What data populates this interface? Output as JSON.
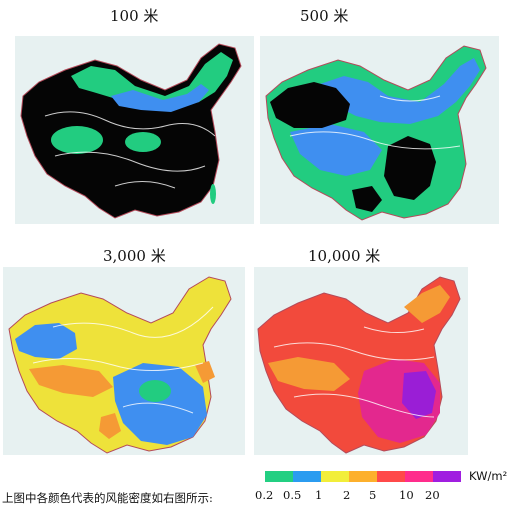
{
  "titles": {
    "p100": "100 米",
    "p500": "500 米",
    "p3000": "3,000 米",
    "p10000": "10,000 米"
  },
  "caption": "上图中各颜色代表的风能密度如右图所示:",
  "legend": {
    "unit": "KW/m²",
    "ticks": [
      "0.2",
      "0.5",
      "1",
      "2",
      "5",
      "10",
      "20"
    ],
    "colors": [
      "#23cf82",
      "#2b9cf0",
      "#f2ee3a",
      "#fdb02c",
      "#ff4a4a",
      "#ff2d8c",
      "#a01ee0"
    ]
  },
  "colors": {
    "black": "#050505",
    "green": "#22cc80",
    "blue": "#3f8ff0",
    "yellow": "#eee23a",
    "orange": "#f59a35",
    "red": "#f24a3c",
    "magenta": "#e3288e",
    "purple": "#9a1ed6",
    "border": "#b44a5a",
    "contour": "#ffffff",
    "sea": "#ffffff",
    "panel_bg": "#e7f1f1"
  },
  "map_layers": {
    "p100": [
      "green",
      "black",
      "blue"
    ],
    "p500": [
      "green",
      "blue",
      "black"
    ],
    "p3000": [
      "yellow",
      "orange",
      "blue",
      "green"
    ],
    "p10000": [
      "orange",
      "red",
      "magenta",
      "purple"
    ]
  }
}
